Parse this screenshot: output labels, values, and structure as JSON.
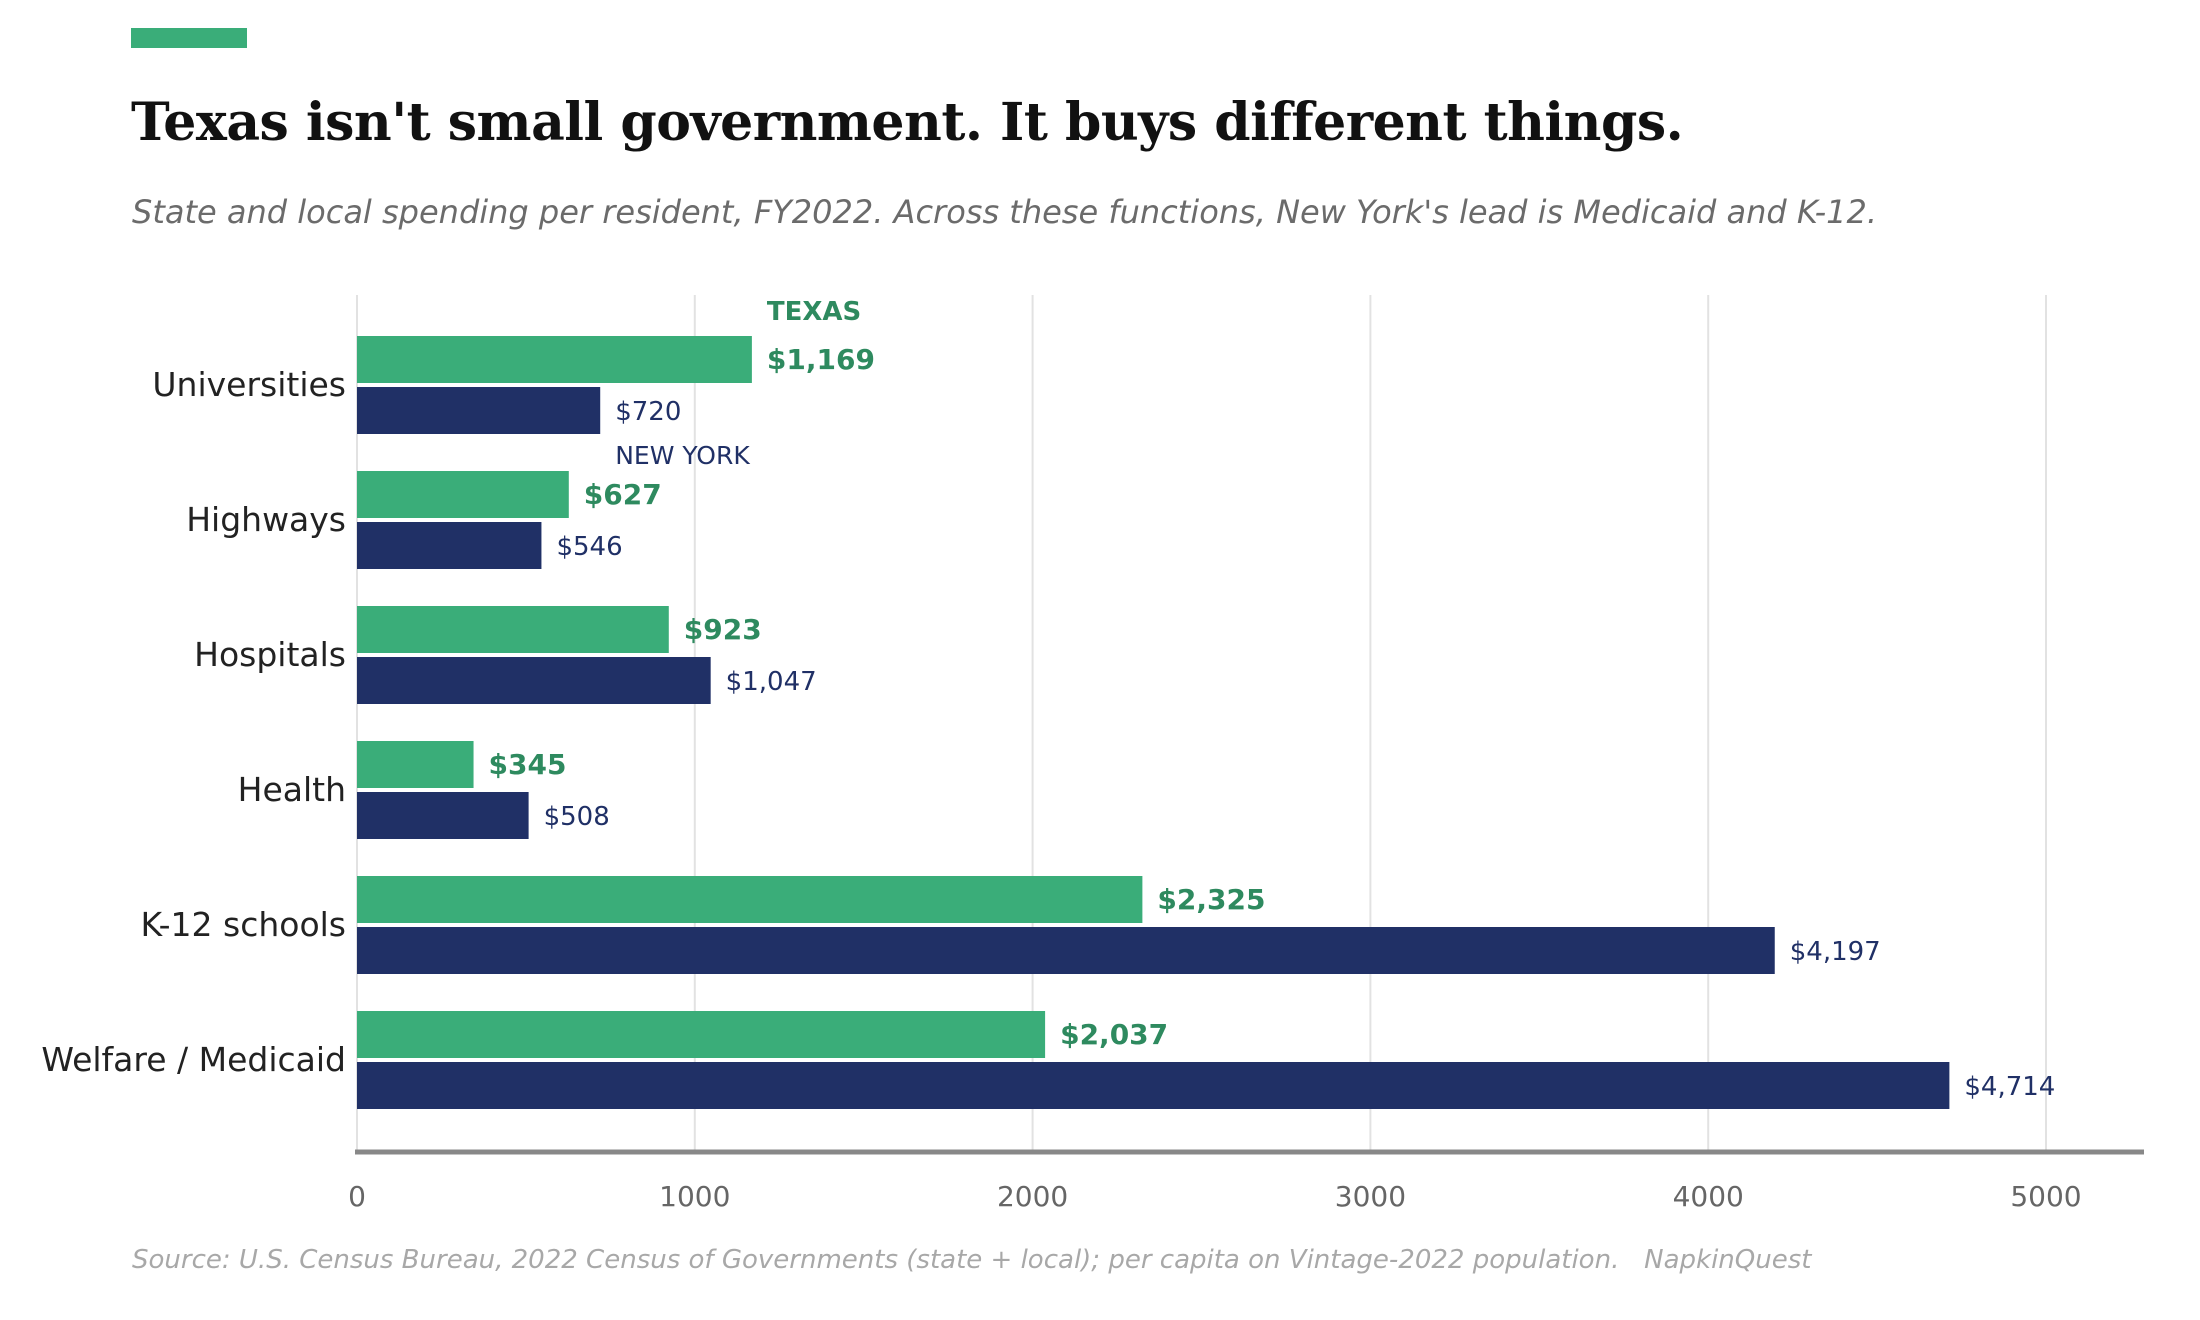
{
  "header": {
    "title": "Texas isn't small government. It buys different things.",
    "subtitle": "State and local spending per resident, FY2022. Across these functions, New York's lead is Medicaid and K-12."
  },
  "footer": {
    "source": "Source: U.S. Census Bureau, 2022 Census of Governments (state + local); per capita on Vintage-2022 population.",
    "brand": "NapkinQuest"
  },
  "colors": {
    "texas": "#3aad79",
    "texas_label": "#2e8a5f",
    "new_york": "#203066",
    "grid": "#e2e2e2",
    "axis": "#888888",
    "tick_text": "#666666",
    "category_text": "#222222"
  },
  "chart_data": {
    "type": "bar",
    "orientation": "horizontal",
    "title": "Texas isn't small government. It buys different things.",
    "subtitle": "State and local spending per resident, FY2022. Across these functions, New York's lead is Medicaid and K-12.",
    "categories": [
      "Universities",
      "Highways",
      "Hospitals",
      "Health",
      "K-12 schools",
      "Welfare / Medicaid"
    ],
    "series": [
      {
        "name": "TEXAS",
        "values": [
          1169,
          627,
          923,
          345,
          2325,
          2037
        ],
        "labels": [
          "$1,169",
          "$627",
          "$923",
          "$345",
          "$2,325",
          "$2,037"
        ]
      },
      {
        "name": "NEW YORK",
        "values": [
          720,
          546,
          1047,
          508,
          4197,
          4714
        ],
        "labels": [
          "$720",
          "$546",
          "$1,047",
          "$508",
          "$4,197",
          "$4,714"
        ]
      }
    ],
    "xlim": [
      0,
      5300
    ],
    "xticks": [
      0,
      1000,
      2000,
      3000,
      4000,
      5000
    ],
    "xtick_labels": [
      "0",
      "1000",
      "2000",
      "3000",
      "4000",
      "5000"
    ],
    "grid": "vertical",
    "legend": "direct labels on first bars"
  }
}
